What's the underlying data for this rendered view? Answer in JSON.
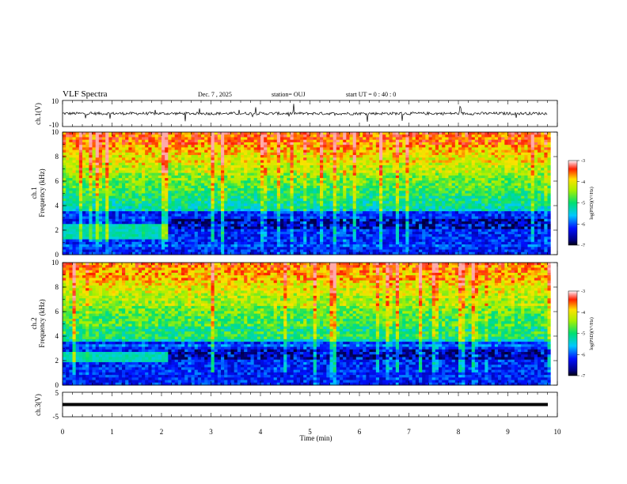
{
  "header": {
    "title": "VLF Spectra",
    "date": "Dec. 7 , 2025",
    "station": "station= OUJ",
    "start": "start UT = 0 : 40 : 0"
  },
  "chart_data": [
    {
      "type": "line",
      "panel": "ch1-waveform",
      "ylabel": "ch.1(V)",
      "ylim": [
        -10,
        10
      ],
      "yticks": [
        "10",
        "-10"
      ],
      "x_range_min": [
        0,
        10
      ],
      "signal_extent_min": [
        0,
        9.8
      ],
      "baseline_v": 0
    },
    {
      "type": "heatmap",
      "panel": "ch1-spectrogram",
      "ylabel": "ch.1 Frequency (kHz)",
      "ylim": [
        0,
        10
      ],
      "yticks": [
        "0",
        "2",
        "4",
        "6",
        "8",
        "10"
      ],
      "colorbar_label": "log(PSD)(V²/Hz)",
      "colorbar_range": [
        -7,
        -3
      ],
      "colorbar_ticks": [
        "-3",
        "-4",
        "-5",
        "-6",
        "-7"
      ],
      "hiss_band_khz": [
        1.3,
        2.5
      ],
      "hiss_until_min": 2.15
    },
    {
      "type": "heatmap",
      "panel": "ch2-spectrogram",
      "ylabel": "ch.2 Frequency (kHz)",
      "ylim": [
        0,
        10
      ],
      "yticks": [
        "0",
        "2",
        "4",
        "6",
        "8",
        "10"
      ],
      "colorbar_label": "log(PSD)(V²/Hz)",
      "colorbar_range": [
        -7,
        -3
      ],
      "colorbar_ticks": [
        "-3",
        "-4",
        "-5",
        "-6",
        "-7"
      ],
      "hiss_band_khz": [
        1.8,
        2.8
      ],
      "hiss_until_min": 2.15
    },
    {
      "type": "line",
      "panel": "ch3-waveform",
      "ylabel": "ch.3(V)",
      "ylim": [
        -5,
        5
      ],
      "yticks": [
        "5",
        "-5"
      ],
      "baseline_v": 0
    }
  ],
  "xaxis": {
    "label": "Time (min)",
    "range": [
      0,
      10
    ],
    "ticks": [
      "0",
      "1",
      "2",
      "3",
      "4",
      "5",
      "6",
      "7",
      "8",
      "9",
      "10"
    ]
  },
  "colors": {
    "trace": "#000000",
    "frame": "#000000"
  }
}
